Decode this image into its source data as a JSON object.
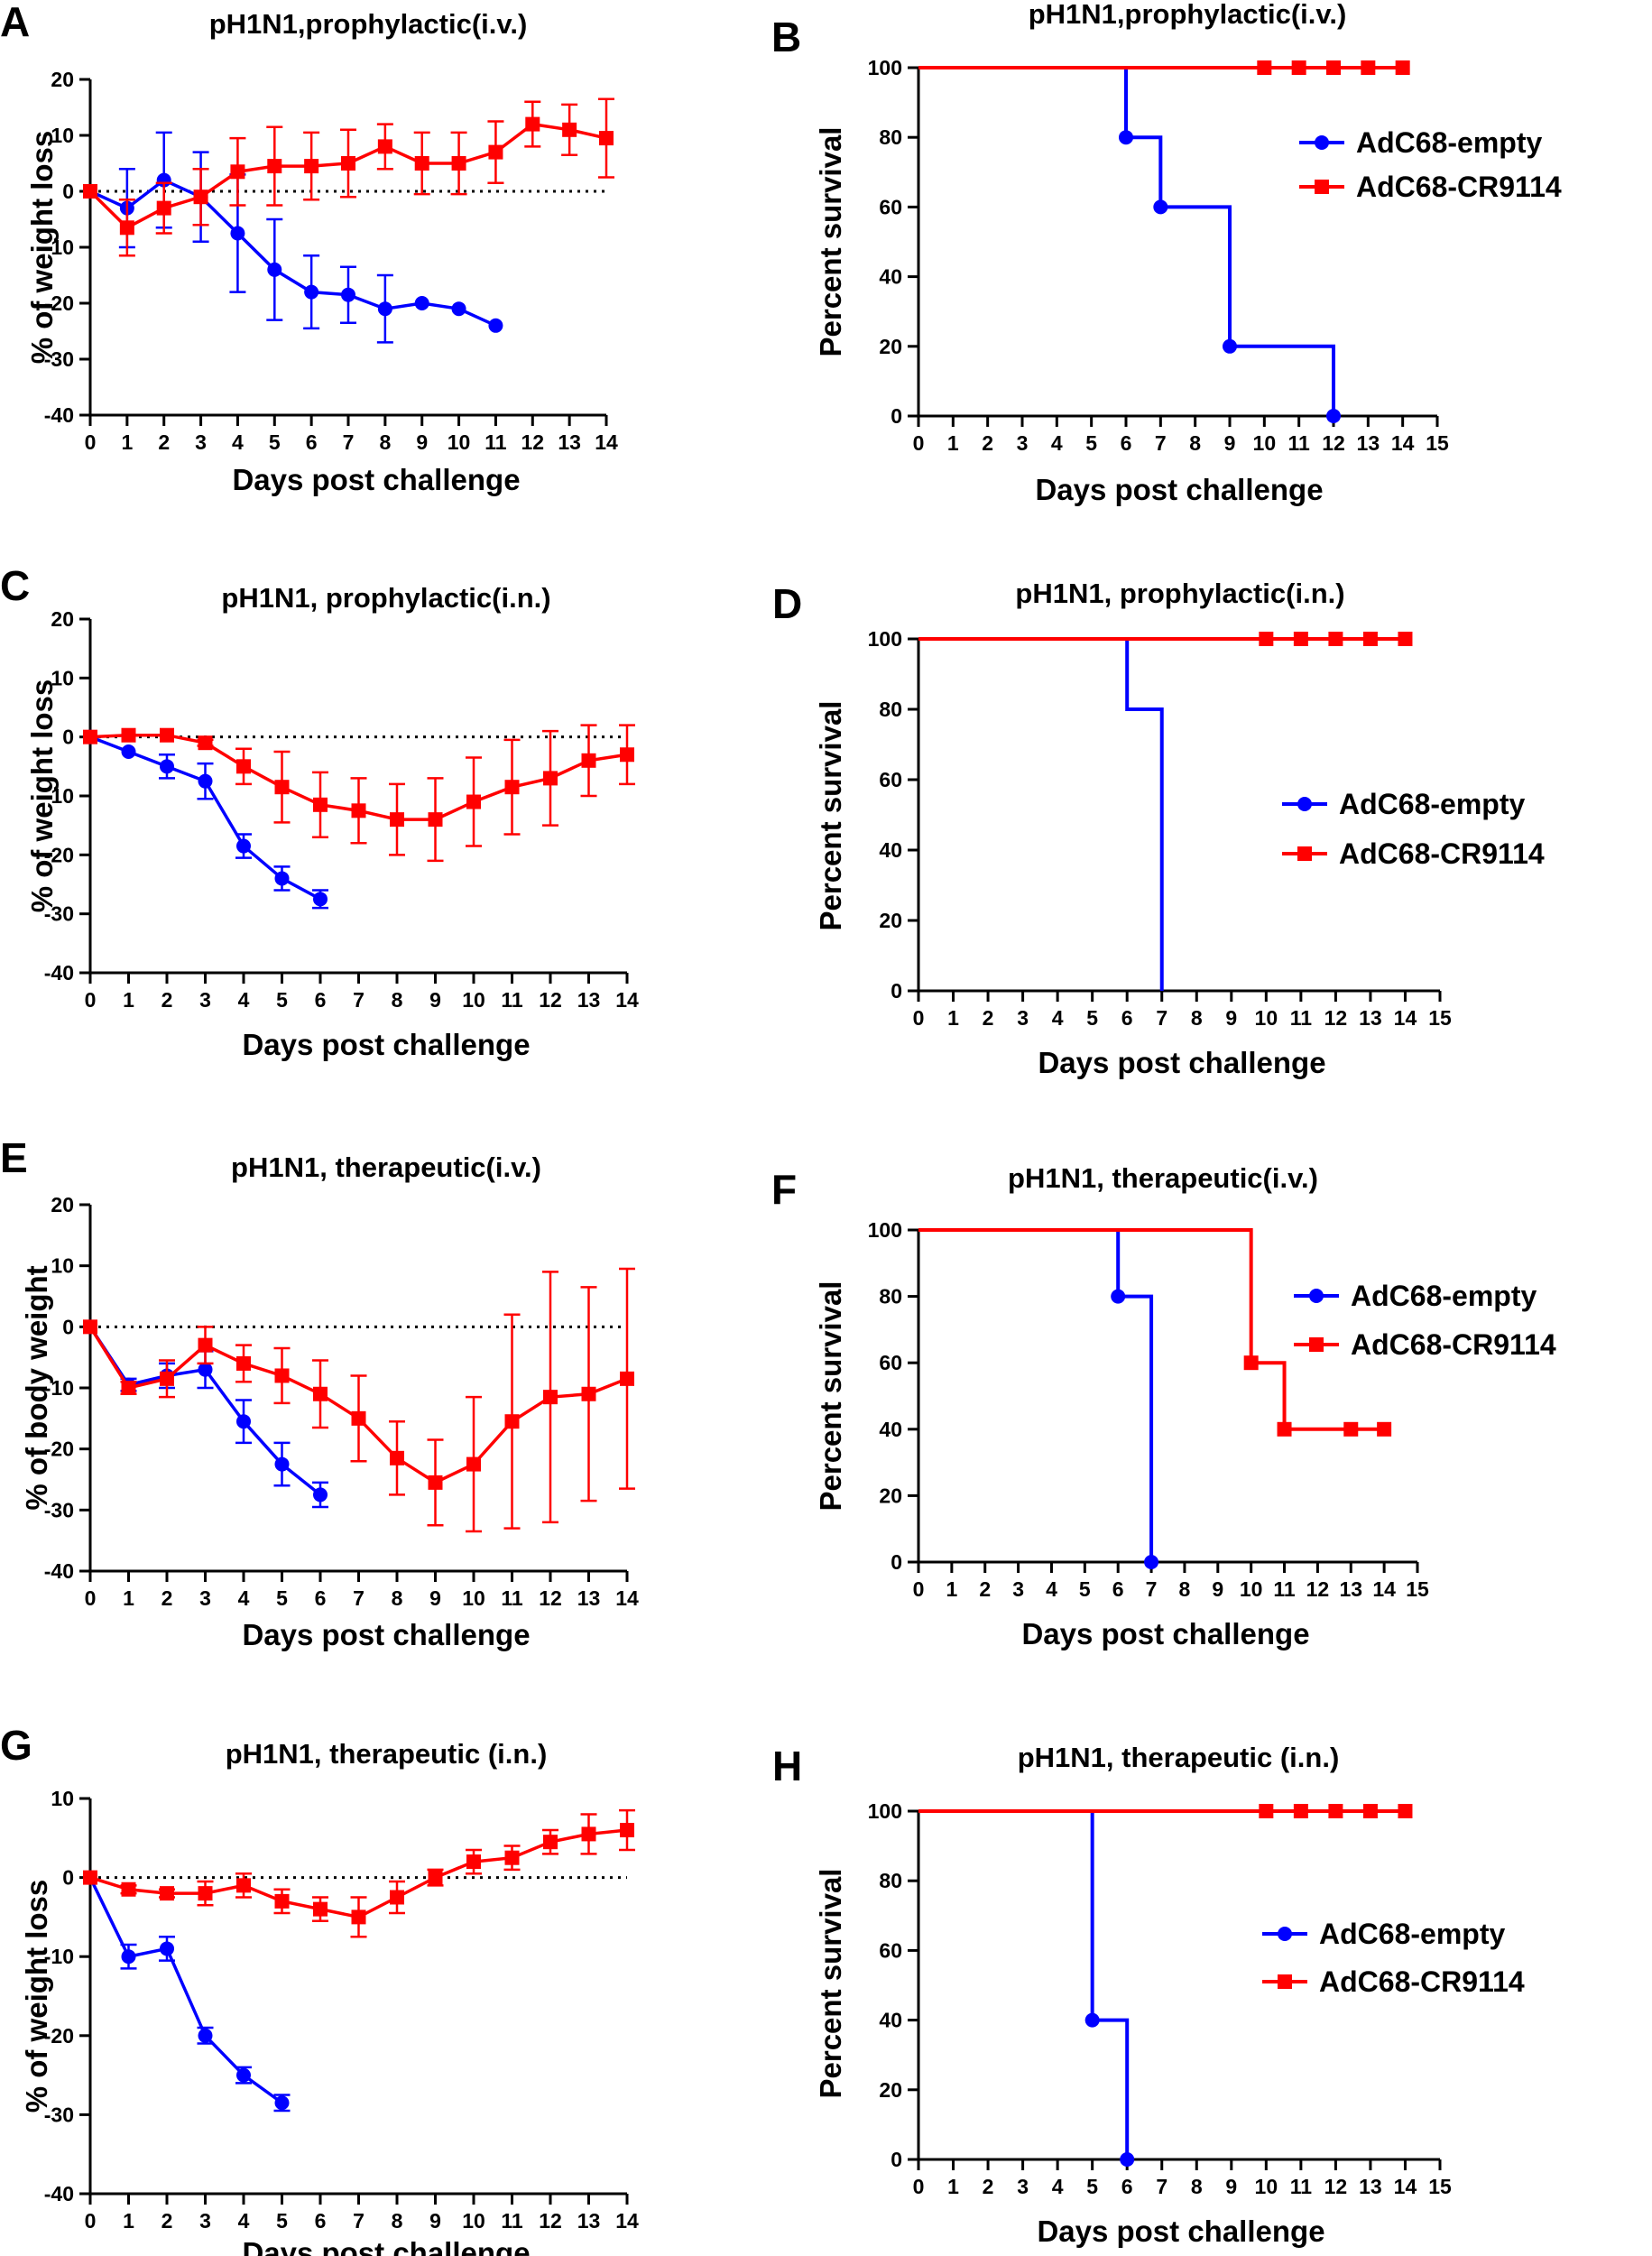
{
  "colors": {
    "empty": "#0000ff",
    "cr9114": "#ff0000",
    "axis": "#000000"
  },
  "chart_data": [
    {
      "id": "A",
      "panel_label": "A",
      "type": "line",
      "title": "pH1N1,prophylactic(i.v.)",
      "xlabel": "Days post challenge",
      "ylabel": "% of weight loss",
      "xlim": [
        0,
        14
      ],
      "xticks": [
        "0",
        "1",
        "2",
        "3",
        "4",
        "5",
        "6",
        "7",
        "8",
        "9",
        "10",
        "11",
        "12",
        "13",
        "14"
      ],
      "ylim": [
        -40,
        20
      ],
      "yticks": [
        "20",
        "10",
        "0",
        "-10",
        "-20",
        "-30",
        "-40"
      ],
      "zero_line": true,
      "series": [
        {
          "name": "AdC68-empty",
          "color": "#0000ff",
          "marker": "circle",
          "x": [
            0,
            1,
            2,
            3,
            4,
            5,
            6,
            7,
            8,
            9,
            10,
            11
          ],
          "y": [
            0,
            -3,
            2,
            -1,
            -7.5,
            -14,
            -18,
            -18.5,
            -21,
            -20,
            -21,
            -24
          ],
          "err": [
            0,
            7,
            8.5,
            8,
            10.5,
            9,
            6.5,
            5,
            6,
            0,
            0,
            0
          ]
        },
        {
          "name": "AdC68-CR9114",
          "color": "#ff0000",
          "marker": "square",
          "x": [
            0,
            1,
            2,
            3,
            4,
            5,
            6,
            7,
            8,
            9,
            10,
            11,
            12,
            13,
            14
          ],
          "y": [
            0,
            -6.5,
            -3,
            -1,
            3.5,
            4.5,
            4.5,
            5,
            8,
            5,
            5,
            7,
            12,
            11,
            9.5
          ],
          "err": [
            0,
            5,
            4.5,
            5,
            6,
            7,
            6,
            6,
            4,
            5.5,
            5.5,
            5.5,
            4,
            4.5,
            7
          ]
        }
      ]
    },
    {
      "id": "B",
      "panel_label": "B",
      "type": "line",
      "title": "pH1N1,prophylactic(i.v.)",
      "xlabel": "Days post challenge",
      "ylabel": "Percent survival",
      "xlim": [
        0,
        15
      ],
      "xticks": [
        "0",
        "1",
        "2",
        "3",
        "4",
        "5",
        "6",
        "7",
        "8",
        "9",
        "10",
        "11",
        "12",
        "13",
        "14",
        "15"
      ],
      "ylim": [
        0,
        100
      ],
      "yticks": [
        "100",
        "80",
        "60",
        "40",
        "20",
        "0"
      ],
      "legend_position": "right",
      "series": [
        {
          "name": "AdC68-empty",
          "color": "#0000ff",
          "marker": "circle",
          "steps": [
            [
              0,
              100
            ],
            [
              6,
              80
            ],
            [
              7,
              60
            ],
            [
              9,
              20
            ],
            [
              12,
              0
            ]
          ],
          "markers": [
            [
              6,
              80
            ],
            [
              7,
              60
            ],
            [
              9,
              20
            ],
            [
              12,
              0
            ]
          ]
        },
        {
          "name": "AdC68-CR9114",
          "color": "#ff0000",
          "marker": "square",
          "steps": [
            [
              0,
              100
            ],
            [
              14,
              100
            ]
          ],
          "markers": [
            [
              10,
              100
            ],
            [
              11,
              100
            ],
            [
              12,
              100
            ],
            [
              13,
              100
            ],
            [
              14,
              100
            ]
          ]
        }
      ]
    },
    {
      "id": "C",
      "panel_label": "C",
      "type": "line",
      "title": "pH1N1, prophylactic(i.n.)",
      "xlabel": "Days post challenge",
      "ylabel": "% of weight loss",
      "xlim": [
        0,
        14
      ],
      "xticks": [
        "0",
        "1",
        "2",
        "3",
        "4",
        "5",
        "6",
        "7",
        "8",
        "9",
        "10",
        "11",
        "12",
        "13",
        "14"
      ],
      "ylim": [
        -40,
        20
      ],
      "yticks": [
        "20",
        "10",
        "0",
        "-10",
        "-20",
        "-30",
        "-40"
      ],
      "zero_line": true,
      "series": [
        {
          "name": "AdC68-empty",
          "color": "#0000ff",
          "marker": "circle",
          "x": [
            0,
            1,
            2,
            3,
            4,
            5,
            6
          ],
          "y": [
            0,
            -2.5,
            -5,
            -7.5,
            -18.5,
            -24,
            -27.5
          ],
          "err": [
            0,
            0,
            2,
            3,
            2,
            2,
            1.5
          ]
        },
        {
          "name": "AdC68-CR9114",
          "color": "#ff0000",
          "marker": "square",
          "x": [
            0,
            1,
            2,
            3,
            4,
            5,
            6,
            7,
            8,
            9,
            10,
            11,
            12,
            13,
            14
          ],
          "y": [
            0,
            0.3,
            0.3,
            -1,
            -5,
            -8.5,
            -11.5,
            -12.5,
            -14,
            -14,
            -11,
            -8.5,
            -7,
            -4,
            -3
          ],
          "err": [
            0,
            0,
            0,
            0.5,
            3,
            6,
            5.5,
            5.5,
            6,
            7,
            7.5,
            8,
            8,
            6,
            5
          ]
        }
      ]
    },
    {
      "id": "D",
      "panel_label": "D",
      "type": "line",
      "title": "pH1N1, prophylactic(i.n.)",
      "xlabel": "Days post challenge",
      "ylabel": "Percent survival",
      "xlim": [
        0,
        15
      ],
      "xticks": [
        "0",
        "1",
        "2",
        "3",
        "4",
        "5",
        "6",
        "7",
        "8",
        "9",
        "10",
        "11",
        "12",
        "13",
        "14",
        "15"
      ],
      "ylim": [
        0,
        100
      ],
      "yticks": [
        "100",
        "80",
        "60",
        "40",
        "20",
        "0"
      ],
      "legend_position": "right",
      "series": [
        {
          "name": "AdC68-empty",
          "color": "#0000ff",
          "marker": "circle",
          "steps": [
            [
              0,
              100
            ],
            [
              6,
              80
            ],
            [
              7,
              0
            ]
          ],
          "markers": []
        },
        {
          "name": "AdC68-CR9114",
          "color": "#ff0000",
          "marker": "square",
          "steps": [
            [
              0,
              100
            ],
            [
              14,
              100
            ]
          ],
          "markers": [
            [
              10,
              100
            ],
            [
              11,
              100
            ],
            [
              12,
              100
            ],
            [
              13,
              100
            ],
            [
              14,
              100
            ]
          ]
        }
      ]
    },
    {
      "id": "E",
      "panel_label": "E",
      "type": "line",
      "title": "pH1N1, therapeutic(i.v.)",
      "xlabel": "Days post challenge",
      "ylabel": "% of body weight",
      "xlim": [
        0,
        14
      ],
      "xticks": [
        "0",
        "1",
        "2",
        "3",
        "4",
        "5",
        "6",
        "7",
        "8",
        "9",
        "10",
        "11",
        "12",
        "13",
        "14"
      ],
      "ylim": [
        -40,
        20
      ],
      "yticks": [
        "20",
        "10",
        "0",
        "-10",
        "-20",
        "-30",
        "-40"
      ],
      "zero_line": true,
      "series": [
        {
          "name": "AdC68-empty",
          "color": "#0000ff",
          "marker": "circle",
          "x": [
            0,
            1,
            2,
            3,
            4,
            5,
            6
          ],
          "y": [
            0,
            -9.5,
            -8,
            -7,
            -15.5,
            -22.5,
            -27.5
          ],
          "err": [
            0,
            1,
            2,
            3,
            3.5,
            3.5,
            2
          ]
        },
        {
          "name": "AdC68-CR9114",
          "color": "#ff0000",
          "marker": "square",
          "x": [
            0,
            1,
            2,
            3,
            4,
            5,
            6,
            7,
            8,
            9,
            10,
            11,
            12,
            13,
            14
          ],
          "y": [
            0,
            -10,
            -8.5,
            -3,
            -6,
            -8,
            -11,
            -15,
            -21.5,
            -25.5,
            -22.5,
            -15.5,
            -11.5,
            -11,
            -8.5
          ],
          "err": [
            0,
            1,
            3,
            3,
            3,
            4.5,
            5.5,
            7,
            6,
            7,
            11,
            17.5,
            20.5,
            17.5,
            18
          ]
        }
      ]
    },
    {
      "id": "F",
      "panel_label": "F",
      "type": "line",
      "title": "pH1N1, therapeutic(i.v.)",
      "xlabel": "Days post challenge",
      "ylabel": "Percent survival",
      "xlim": [
        0,
        15
      ],
      "xticks": [
        "0",
        "1",
        "2",
        "3",
        "4",
        "5",
        "6",
        "7",
        "8",
        "9",
        "10",
        "11",
        "12",
        "13",
        "14",
        "15"
      ],
      "ylim": [
        0,
        100
      ],
      "yticks": [
        "100",
        "80",
        "60",
        "40",
        "20",
        "0"
      ],
      "legend_position": "right",
      "series": [
        {
          "name": "AdC68-empty",
          "color": "#0000ff",
          "marker": "circle",
          "steps": [
            [
              0,
              100
            ],
            [
              6,
              80
            ],
            [
              7,
              0
            ]
          ],
          "markers": [
            [
              6,
              80
            ],
            [
              7,
              0
            ]
          ]
        },
        {
          "name": "AdC68-CR9114",
          "color": "#ff0000",
          "marker": "square",
          "steps": [
            [
              0,
              100
            ],
            [
              10,
              60
            ],
            [
              11,
              40
            ],
            [
              14,
              40
            ]
          ],
          "markers": [
            [
              10,
              60
            ],
            [
              11,
              40
            ],
            [
              13,
              40
            ],
            [
              14,
              40
            ]
          ]
        }
      ]
    },
    {
      "id": "G",
      "panel_label": "G",
      "type": "line",
      "title": "pH1N1, therapeutic (i.n.)",
      "xlabel": "Days post challenge",
      "ylabel": "% of weight loss",
      "xlim": [
        0,
        14
      ],
      "xticks": [
        "0",
        "1",
        "2",
        "3",
        "4",
        "5",
        "6",
        "7",
        "8",
        "9",
        "10",
        "11",
        "12",
        "13",
        "14"
      ],
      "ylim": [
        -40,
        10
      ],
      "yticks": [
        "10",
        "0",
        "-10",
        "-20",
        "-30",
        "-40"
      ],
      "zero_line": true,
      "series": [
        {
          "name": "AdC68-empty",
          "color": "#0000ff",
          "marker": "circle",
          "x": [
            0,
            1,
            2,
            3,
            4,
            5
          ],
          "y": [
            0,
            -10,
            -9,
            -20,
            -25,
            -28.5
          ],
          "err": [
            0,
            1.5,
            1.5,
            1,
            1,
            1
          ]
        },
        {
          "name": "AdC68-CR9114",
          "color": "#ff0000",
          "marker": "square",
          "x": [
            0,
            1,
            2,
            3,
            4,
            5,
            6,
            7,
            8,
            9,
            10,
            11,
            12,
            13,
            14
          ],
          "y": [
            0,
            -1.5,
            -2,
            -2,
            -1,
            -3,
            -4,
            -5,
            -2.5,
            0,
            2,
            2.5,
            4.5,
            5.5,
            6
          ],
          "err": [
            0,
            0.5,
            0.5,
            1.5,
            1.5,
            1.5,
            1.5,
            2.5,
            2,
            1,
            1.5,
            1.5,
            1.5,
            2.5,
            2.5
          ]
        }
      ]
    },
    {
      "id": "H",
      "panel_label": "H",
      "type": "line",
      "title": "pH1N1, therapeutic (i.n.)",
      "xlabel": "Days post challenge",
      "ylabel": "Percent survival",
      "xlim": [
        0,
        15
      ],
      "xticks": [
        "0",
        "1",
        "2",
        "3",
        "4",
        "5",
        "6",
        "7",
        "8",
        "9",
        "10",
        "11",
        "12",
        "13",
        "14",
        "15"
      ],
      "ylim": [
        0,
        100
      ],
      "yticks": [
        "100",
        "80",
        "60",
        "40",
        "20",
        "0"
      ],
      "legend_position": "right",
      "series": [
        {
          "name": "AdC68-empty",
          "color": "#0000ff",
          "marker": "circle",
          "steps": [
            [
              0,
              100
            ],
            [
              5,
              40
            ],
            [
              6,
              0
            ]
          ],
          "markers": [
            [
              5,
              40
            ],
            [
              6,
              0
            ]
          ]
        },
        {
          "name": "AdC68-CR9114",
          "color": "#ff0000",
          "marker": "square",
          "steps": [
            [
              0,
              100
            ],
            [
              14,
              100
            ]
          ],
          "markers": [
            [
              10,
              100
            ],
            [
              11,
              100
            ],
            [
              12,
              100
            ],
            [
              13,
              100
            ],
            [
              14,
              100
            ]
          ]
        }
      ]
    }
  ]
}
